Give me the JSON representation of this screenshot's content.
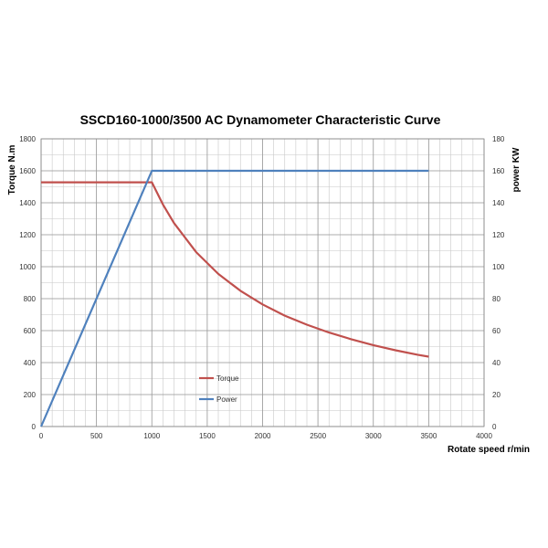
{
  "chart_data": {
    "type": "line",
    "title": "SSCD160-1000/3500 AC Dynamometer Characteristic Curve",
    "xlabel": "Rotate speed r/min",
    "ylabel_left": "Torque N.m",
    "ylabel_right": "power KW",
    "xlim": [
      0,
      4000
    ],
    "ylim_left": [
      0,
      1800
    ],
    "ylim_right": [
      0,
      180
    ],
    "x_ticks": [
      0,
      500,
      1000,
      1500,
      2000,
      2500,
      3000,
      3500,
      4000
    ],
    "y_left_ticks": [
      0,
      200,
      400,
      600,
      800,
      1000,
      1200,
      1400,
      1600,
      1800
    ],
    "y_right_ticks": [
      0,
      20,
      40,
      60,
      80,
      100,
      120,
      140,
      160,
      180
    ],
    "grid": true,
    "legend_position": "center-left",
    "series": [
      {
        "name": "Torque",
        "axis": "left",
        "color": "#c0504d",
        "x": [
          0,
          1000,
          1100,
          1200,
          1400,
          1600,
          1800,
          2000,
          2200,
          2400,
          2600,
          2800,
          3000,
          3200,
          3400,
          3500
        ],
        "y": [
          1528,
          1528,
          1389,
          1273,
          1091,
          955,
          849,
          764,
          694,
          637,
          588,
          546,
          509,
          477,
          449,
          437
        ]
      },
      {
        "name": "Power",
        "axis": "right",
        "color": "#4f81bd",
        "x": [
          0,
          1000,
          3500
        ],
        "y": [
          0,
          160,
          160
        ]
      }
    ]
  }
}
